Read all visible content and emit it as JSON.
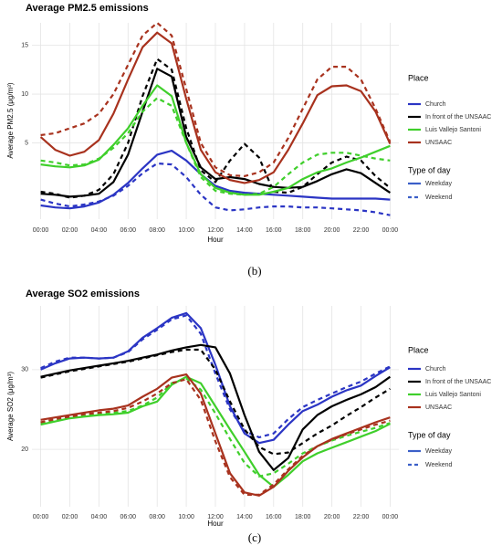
{
  "chart_data": [
    {
      "type": "line",
      "title": "Average PM2.5 emissions",
      "x_label": "Hour",
      "y_label": "Average PM2.5 (μg/m³)",
      "panel_label": "(b)",
      "x": [
        0,
        1,
        2,
        3,
        4,
        5,
        6,
        7,
        8,
        9,
        10,
        11,
        12,
        13,
        14,
        15,
        16,
        17,
        18,
        19,
        20,
        21,
        22,
        23,
        24
      ],
      "xlim": [
        -0.6,
        24.6
      ],
      "xticks": [
        {
          "value": 0,
          "label": "00:00"
        },
        {
          "value": 2,
          "label": "02:00"
        },
        {
          "value": 4,
          "label": "04:00"
        },
        {
          "value": 6,
          "label": "06:00"
        },
        {
          "value": 8,
          "label": "08:00"
        },
        {
          "value": 10,
          "label": "10:00"
        },
        {
          "value": 12,
          "label": "12:00"
        },
        {
          "value": 14,
          "label": "14:00"
        },
        {
          "value": 16,
          "label": "16:00"
        },
        {
          "value": 18,
          "label": "18:00"
        },
        {
          "value": 20,
          "label": "20:00"
        },
        {
          "value": 22,
          "label": "22:00"
        },
        {
          "value": 24,
          "label": "00:00"
        }
      ],
      "ylim": [
        -2.8,
        17.3
      ],
      "yticks": [
        5,
        10,
        15
      ],
      "grid": true,
      "legend_title": "Place",
      "line_type_title": "Type of day",
      "line_types": [
        "Weekday",
        "Weekend"
      ],
      "series": [
        {
          "name": "Church",
          "color": "#2b35c4",
          "values": [
            -1.4,
            -1.6,
            -1.7,
            -1.5,
            -1.1,
            -0.3,
            0.9,
            2.4,
            3.8,
            4.2,
            3.2,
            1.8,
            0.6,
            0.1,
            -0.1,
            -0.2,
            -0.3,
            -0.4,
            -0.5,
            -0.6,
            -0.7,
            -0.7,
            -0.7,
            -0.7,
            -0.8
          ],
          "weekend_values": [
            -0.8,
            -1.2,
            -1.5,
            -1.3,
            -1.0,
            -0.4,
            0.6,
            1.9,
            2.9,
            2.8,
            1.5,
            -0.3,
            -1.6,
            -1.9,
            -1.8,
            -1.6,
            -1.5,
            -1.5,
            -1.6,
            -1.6,
            -1.7,
            -1.8,
            -1.9,
            -2.1,
            -2.4
          ]
        },
        {
          "name": "In front of the UNSAAC",
          "color": "#000000",
          "values": [
            -0.2,
            -0.3,
            -0.5,
            -0.4,
            -0.2,
            1.0,
            3.8,
            8.2,
            12.6,
            11.8,
            5.6,
            2.5,
            1.3,
            1.5,
            1.3,
            0.8,
            0.5,
            0.4,
            0.5,
            1.1,
            1.8,
            2.3,
            1.9,
            0.9,
            -0.1
          ],
          "weekend_values": [
            0.0,
            -0.2,
            -0.6,
            -0.4,
            0.2,
            1.8,
            5.0,
            9.8,
            13.6,
            12.5,
            6.5,
            2.2,
            1.0,
            3.2,
            4.9,
            3.5,
            0.0,
            -0.1,
            0.5,
            1.8,
            3.0,
            3.6,
            3.2,
            1.6,
            0.4
          ]
        },
        {
          "name": "Luis Vallejo Santoni",
          "color": "#3fcf2b",
          "values": [
            2.8,
            2.6,
            2.5,
            2.7,
            3.3,
            4.8,
            6.5,
            8.8,
            10.9,
            9.8,
            5.0,
            1.8,
            0.4,
            -0.1,
            -0.3,
            -0.3,
            0.0,
            0.4,
            1.3,
            2.0,
            2.4,
            3.0,
            3.5,
            4.1,
            4.7
          ],
          "weekend_values": [
            3.2,
            3.0,
            2.7,
            2.8,
            3.4,
            4.5,
            6.0,
            8.2,
            9.6,
            8.8,
            5.0,
            1.5,
            0.1,
            -0.2,
            -0.3,
            -0.2,
            0.5,
            1.8,
            3.0,
            3.8,
            4.0,
            4.0,
            3.7,
            3.4,
            3.2
          ]
        },
        {
          "name": "UNSAAC",
          "color": "#a8321e",
          "values": [
            5.6,
            4.3,
            3.7,
            4.1,
            5.3,
            8.0,
            11.5,
            14.8,
            16.3,
            15.2,
            9.5,
            4.3,
            2.0,
            1.2,
            0.9,
            1.2,
            2.0,
            4.3,
            7.0,
            9.9,
            10.8,
            10.9,
            10.3,
            8.2,
            4.9
          ],
          "weekend_values": [
            5.8,
            6.0,
            6.5,
            7.0,
            8.0,
            10.0,
            13.0,
            16.0,
            17.3,
            16.0,
            10.5,
            5.0,
            2.5,
            1.7,
            1.6,
            2.0,
            3.0,
            5.5,
            8.5,
            11.5,
            12.8,
            12.8,
            11.5,
            8.5,
            5.1
          ]
        }
      ]
    },
    {
      "type": "line",
      "title": "Average SO2 emissions",
      "x_label": "Hour",
      "y_label": "Average SO2 (μg/m³)",
      "panel_label": "(c)",
      "x": [
        0,
        1,
        2,
        3,
        4,
        5,
        6,
        7,
        8,
        9,
        10,
        11,
        12,
        13,
        14,
        15,
        16,
        17,
        18,
        19,
        20,
        21,
        22,
        23,
        24
      ],
      "xlim": [
        -0.6,
        24.6
      ],
      "xticks": [
        {
          "value": 0,
          "label": "00:00"
        },
        {
          "value": 2,
          "label": "02:00"
        },
        {
          "value": 4,
          "label": "04:00"
        },
        {
          "value": 6,
          "label": "06:00"
        },
        {
          "value": 8,
          "label": "08:00"
        },
        {
          "value": 10,
          "label": "10:00"
        },
        {
          "value": 12,
          "label": "12:00"
        },
        {
          "value": 14,
          "label": "14:00"
        },
        {
          "value": 16,
          "label": "16:00"
        },
        {
          "value": 18,
          "label": "18:00"
        },
        {
          "value": 20,
          "label": "20:00"
        },
        {
          "value": 22,
          "label": "22:00"
        },
        {
          "value": 24,
          "label": "00:00"
        }
      ],
      "ylim": [
        12.8,
        38.0
      ],
      "yticks": [
        20,
        30
      ],
      "grid": true,
      "legend_title": "Place",
      "line_type_title": "Type of day",
      "line_types": [
        "Weekday",
        "Weekend"
      ],
      "series": [
        {
          "name": "Church",
          "color": "#2b35c4",
          "values": [
            30.0,
            30.8,
            31.4,
            31.5,
            31.4,
            31.5,
            32.3,
            34.0,
            35.2,
            36.5,
            37.1,
            35.2,
            30.6,
            25.4,
            22.0,
            20.8,
            21.2,
            23.1,
            24.8,
            25.6,
            26.6,
            27.4,
            28.0,
            29.2,
            30.3
          ],
          "weekend_values": [
            30.2,
            31.0,
            31.5,
            31.5,
            31.4,
            31.5,
            32.2,
            33.8,
            35.0,
            36.3,
            36.8,
            34.5,
            29.5,
            25.0,
            22.3,
            21.5,
            22.0,
            23.8,
            25.3,
            26.2,
            27.0,
            27.8,
            28.5,
            29.5,
            30.4
          ]
        },
        {
          "name": "In front of the UNSAAC",
          "color": "#000000",
          "values": [
            29.1,
            29.5,
            29.9,
            30.2,
            30.5,
            30.8,
            31.1,
            31.5,
            31.9,
            32.4,
            32.8,
            33.1,
            32.8,
            29.5,
            24.3,
            19.7,
            17.4,
            18.9,
            22.5,
            24.3,
            25.4,
            26.2,
            26.9,
            27.8,
            29.1
          ],
          "weekend_values": [
            29.0,
            29.4,
            29.8,
            30.1,
            30.4,
            30.7,
            31.0,
            31.4,
            31.8,
            32.2,
            32.5,
            32.5,
            30.0,
            26.0,
            22.5,
            20.3,
            19.4,
            19.6,
            20.8,
            22.0,
            23.0,
            24.2,
            25.3,
            26.5,
            27.6
          ]
        },
        {
          "name": "Luis Vallejo Santoni",
          "color": "#3fcf2b",
          "values": [
            23.1,
            23.5,
            23.9,
            24.1,
            24.3,
            24.4,
            24.6,
            25.4,
            26.0,
            28.1,
            29.1,
            28.3,
            25.4,
            22.5,
            19.7,
            16.8,
            15.3,
            16.8,
            18.5,
            19.5,
            20.2,
            20.9,
            21.6,
            22.3,
            23.2
          ],
          "weekend_values": [
            23.3,
            23.7,
            24.1,
            24.3,
            24.5,
            24.6,
            24.8,
            25.5,
            26.5,
            28.3,
            28.9,
            27.5,
            24.5,
            21.3,
            18.3,
            16.6,
            17.0,
            18.2,
            19.5,
            20.4,
            21.1,
            21.7,
            22.2,
            22.7,
            23.3
          ]
        },
        {
          "name": "UNSAAC",
          "color": "#a8321e",
          "values": [
            23.7,
            24.0,
            24.3,
            24.6,
            24.9,
            25.1,
            25.5,
            26.6,
            27.6,
            29.0,
            29.4,
            27.0,
            22.0,
            17.0,
            14.6,
            14.2,
            15.3,
            17.3,
            19.0,
            20.4,
            21.3,
            22.0,
            22.7,
            23.4,
            24.0
          ],
          "weekend_values": [
            23.4,
            23.8,
            24.1,
            24.4,
            24.6,
            24.8,
            25.2,
            26.0,
            27.0,
            28.3,
            28.8,
            26.2,
            21.0,
            16.5,
            14.3,
            14.3,
            15.6,
            17.5,
            19.2,
            20.4,
            21.2,
            21.9,
            22.5,
            23.1,
            23.6
          ]
        }
      ]
    }
  ]
}
